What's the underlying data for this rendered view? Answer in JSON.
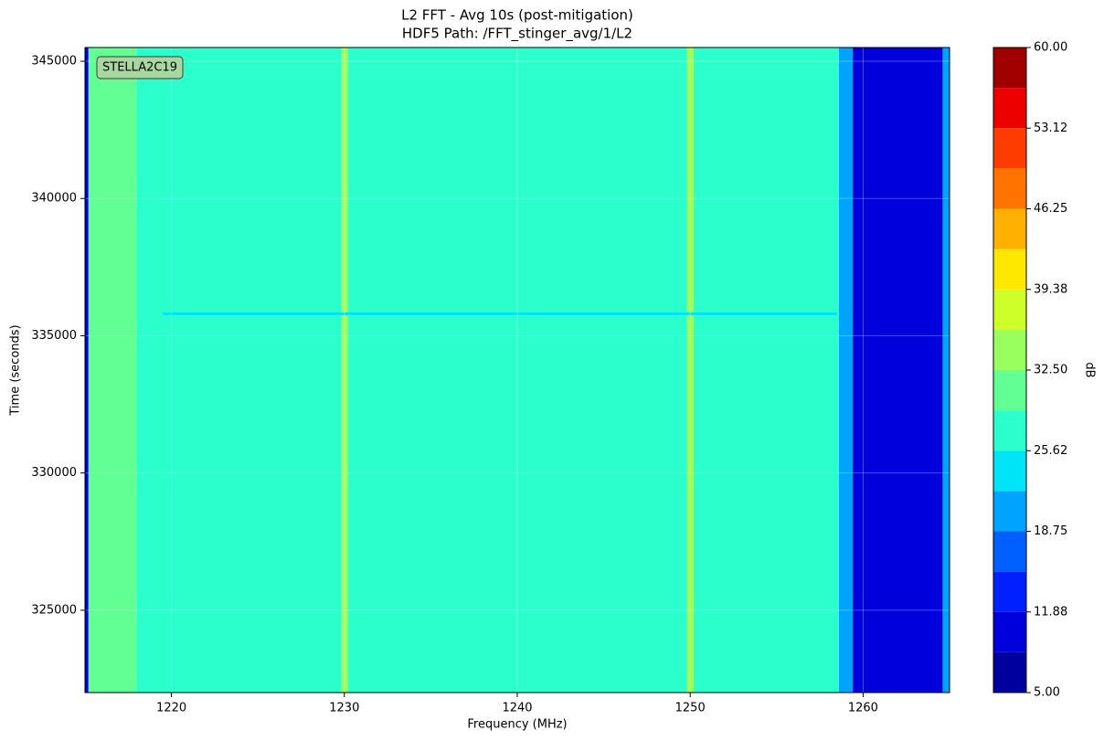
{
  "chart_data": {
    "type": "heatmap",
    "title": "L2 FFT - Avg 10s (post-mitigation)",
    "subtitle": "HDF5 Path: /FFT_stinger_avg/1/L2",
    "xlabel": "Frequency (MHz)",
    "ylabel": "Time (seconds)",
    "annotation": "STELLA2C19",
    "x_edges": [
      1215,
      1215.2,
      1218,
      1229.8,
      1230.2,
      1249.8,
      1250.2,
      1258.6,
      1259.4,
      1264.6,
      1265
    ],
    "values": [
      10,
      32,
      28,
      35,
      28,
      35,
      28,
      20,
      10,
      20
    ],
    "events": [
      {
        "y": 335800,
        "x": [
          1219.5,
          1258.5
        ],
        "value": 24
      }
    ],
    "xlim": [
      1215,
      1265
    ],
    "ylim": [
      322000,
      345500
    ],
    "xticks": [
      1220,
      1230,
      1240,
      1250,
      1260
    ],
    "yticks": [
      325000,
      330000,
      335000,
      340000,
      345000
    ],
    "grid": true,
    "colorbar": {
      "label": "dB",
      "clim": [
        5,
        60
      ],
      "bins": [
        5,
        8.4375,
        11.875,
        15.3125,
        18.75,
        22.1875,
        25.625,
        29.0625,
        32.5,
        35.9375,
        39.375,
        42.8125,
        46.25,
        49.6875,
        53.125,
        56.5625,
        60
      ],
      "colors": [
        "#00009f",
        "#0000dd",
        "#0020ff",
        "#0060ff",
        "#00a4ff",
        "#00e4f8",
        "#2bffcb",
        "#62ff94",
        "#98ff5e",
        "#ceff28",
        "#ffe800",
        "#ffb000",
        "#ff7400",
        "#ff3c00",
        "#ed0000",
        "#a00000"
      ],
      "ticks": [
        {
          "value": 5,
          "label": "5.00"
        },
        {
          "value": 11.875,
          "label": "11.88"
        },
        {
          "value": 18.75,
          "label": "18.75"
        },
        {
          "value": 25.625,
          "label": "25.62"
        },
        {
          "value": 32.5,
          "label": "32.50"
        },
        {
          "value": 39.375,
          "label": "39.38"
        },
        {
          "value": 46.25,
          "label": "46.25"
        },
        {
          "value": 53.125,
          "label": "53.12"
        },
        {
          "value": 60,
          "label": "60.00"
        }
      ]
    }
  }
}
